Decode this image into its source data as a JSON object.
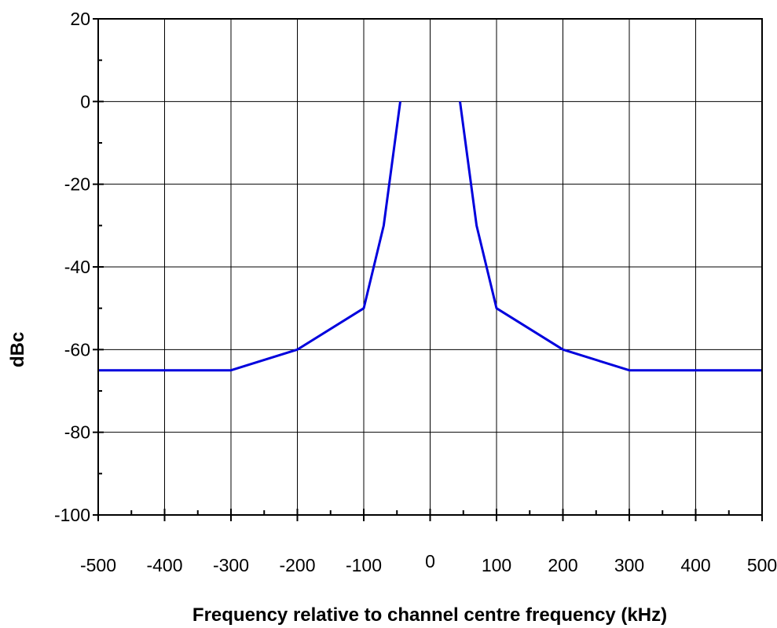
{
  "chart_data": {
    "type": "line",
    "title": "",
    "xlabel": "Frequency relative to channel centre frequency  (kHz)",
    "ylabel": "dBc",
    "xlim": [
      -500,
      500
    ],
    "ylim": [
      -100,
      20
    ],
    "x_ticks": [
      -500,
      -400,
      -300,
      -200,
      -100,
      0,
      100,
      200,
      300,
      400,
      500
    ],
    "x_tick_labels": [
      "-500",
      "-400",
      "-300",
      "-200",
      "-100",
      "0",
      "100",
      "200",
      "300",
      "400",
      "500"
    ],
    "y_ticks": [
      20,
      0,
      -20,
      -40,
      -60,
      -80,
      -100
    ],
    "y_tick_labels": [
      "20",
      "0",
      "-20",
      "-40",
      "-60",
      "-80",
      "-100"
    ],
    "x_minor_step": 50,
    "y_minor_step": 10,
    "grid": true,
    "legend": "none",
    "series": [
      {
        "color": "#0000dd",
        "segments": [
          {
            "x": [
              -500,
              -300,
              -200,
              -100,
              -70,
              -45
            ],
            "y": [
              -65,
              -65,
              -60,
              -50,
              -30,
              0
            ]
          },
          {
            "x": [
              45,
              70,
              100,
              200,
              300,
              500
            ],
            "y": [
              0,
              -30,
              -50,
              -60,
              -65,
              -65
            ]
          }
        ]
      }
    ]
  }
}
